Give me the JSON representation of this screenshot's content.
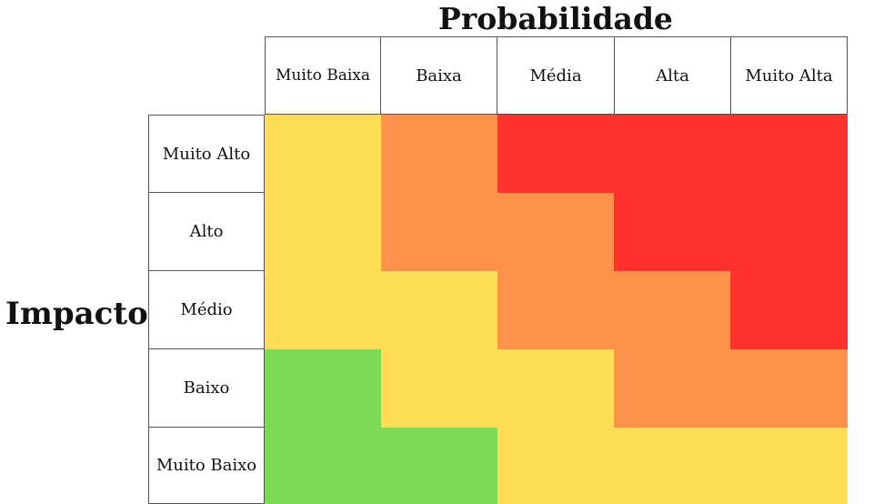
{
  "matrix": {
    "x_title": "Probabilidade",
    "y_title": "Impacto",
    "columns": [
      "Muito Baixa",
      "Baixa",
      "Média",
      "Alta",
      "Muito Alta"
    ],
    "rows": [
      "Muito Alto",
      "Alto",
      "Médio",
      "Baixo",
      "Muito Baixo"
    ],
    "palette": {
      "green": "#7ED957",
      "yellow": "#FFDD57",
      "orange": "#FF914D",
      "red": "#FF3131"
    },
    "cells": [
      [
        "yellow",
        "orange",
        "red",
        "red",
        "red"
      ],
      [
        "yellow",
        "orange",
        "orange",
        "red",
        "red"
      ],
      [
        "yellow",
        "yellow",
        "orange",
        "orange",
        "red"
      ],
      [
        "green",
        "yellow",
        "yellow",
        "orange",
        "orange"
      ],
      [
        "green",
        "green",
        "yellow",
        "yellow",
        "yellow"
      ]
    ]
  }
}
